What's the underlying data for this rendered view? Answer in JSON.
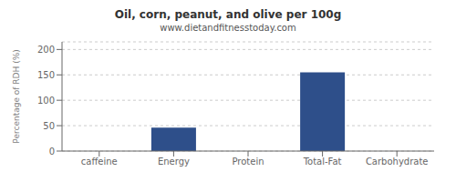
{
  "chart_data": {
    "type": "bar",
    "title": "Oil, corn, peanut, and olive per 100g",
    "subtitle": "www.dietandfitnesstoday.com",
    "categories": [
      "caffeine",
      "Energy",
      "Protein",
      "Total-Fat",
      "Carbohydrate"
    ],
    "values": [
      0,
      46,
      0,
      155,
      0
    ],
    "color": "#2e4f8a",
    "ylabel": "Percentage of RDH (%)",
    "ylim": [
      0,
      215
    ],
    "yticks": [
      0,
      50,
      100,
      150,
      200
    ],
    "grid": true
  }
}
